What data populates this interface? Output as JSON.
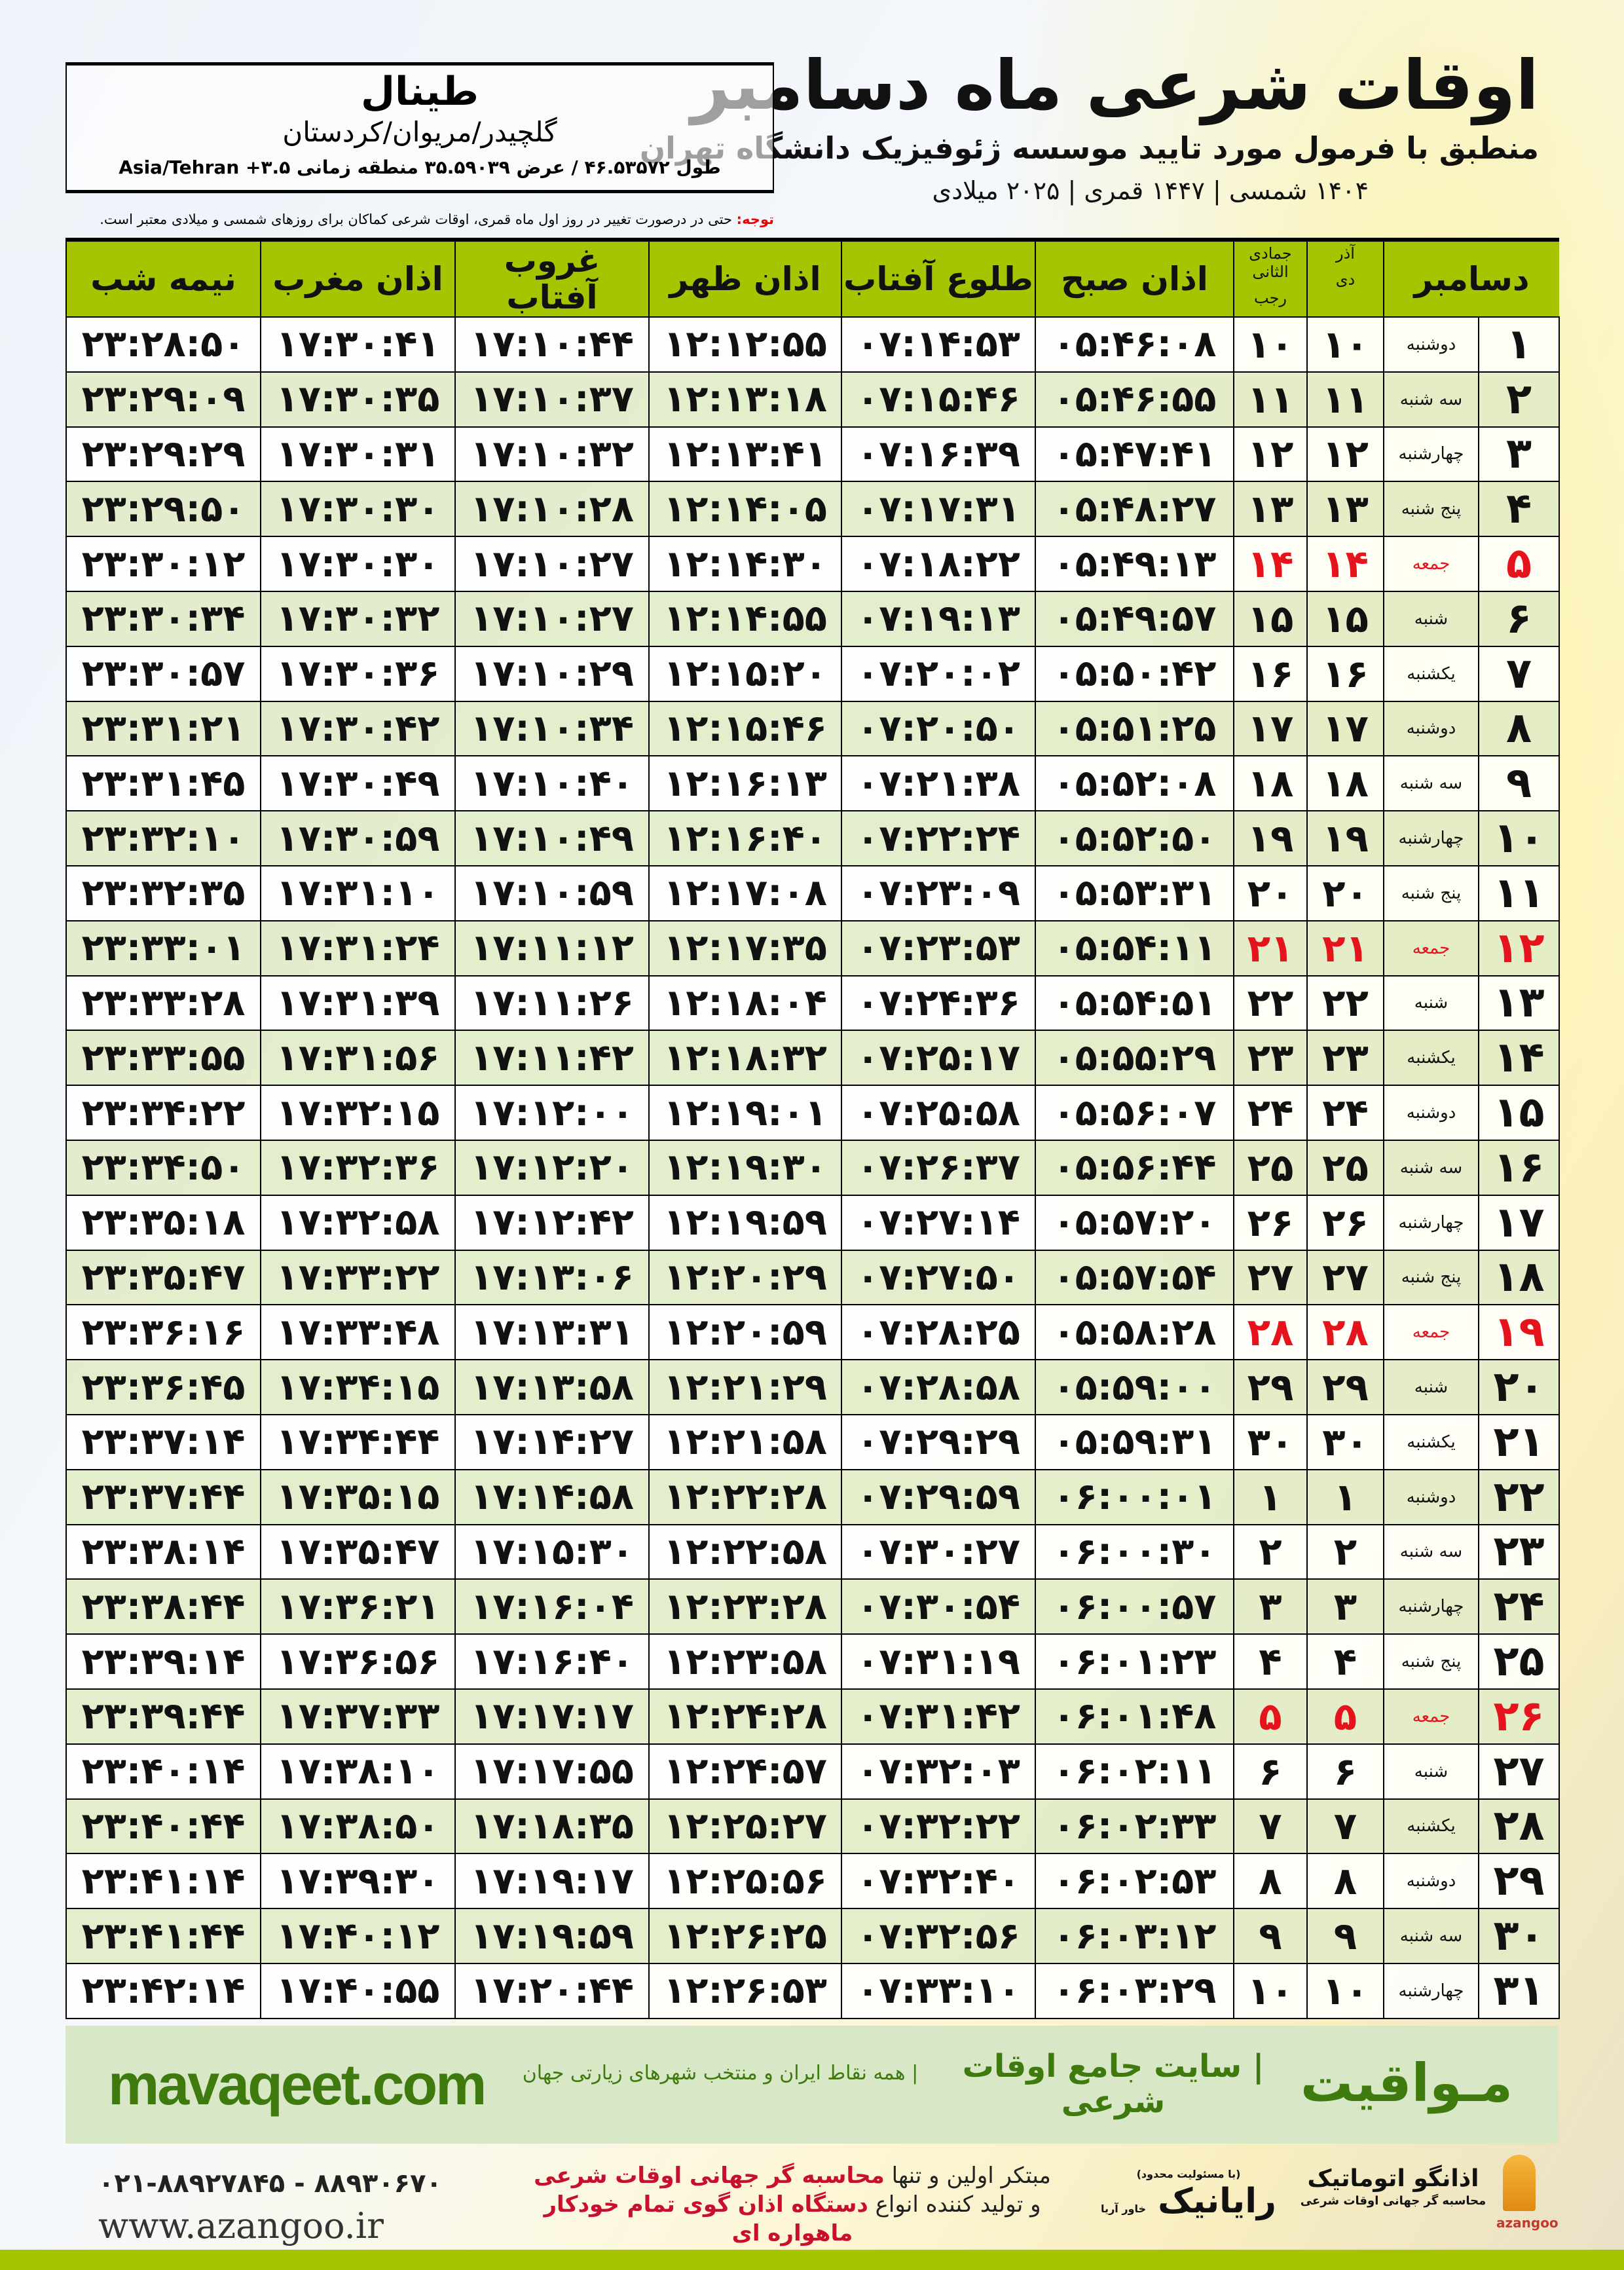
{
  "header": {
    "title": "اوقات شرعی ماه دسامبر",
    "subtitle": "منطبق با فرمول مورد تایید موسسه ژئوفیزیک دانشگاه تهران",
    "year_line": "۱۴۰۴ شمسی | ۱۴۴۷ قمری | ۲۰۲۵ میلادی"
  },
  "location": {
    "city": "طینال",
    "region": "گلچیدر/مریوان/کردستان",
    "coords": "طول ۴۶.۵۳۵۷۲ / عرض ۳۵.۵۹۰۳۹ منطقه زمانی ۳.۵+ Asia/Tehran"
  },
  "note": {
    "label": "توجه:",
    "text": " حتی در درصورت تغییر در روز اول ماه قمری، اوقات شرعی کماکان برای روزهای شمسی و میلادی معتبر است."
  },
  "columns": {
    "month": "دسامبر",
    "solar_top": "آذر",
    "solar_bottom": "دی",
    "lunar_top": "جمادی الثانی",
    "lunar_bottom": "رجب",
    "fajr": "اذان صبح",
    "sunrise": "طلوع آفتاب",
    "dhuhr": "اذان ظهر",
    "sunset": "غروب آفتاب",
    "maghrib": "اذان مغرب",
    "midnight": "نیمه شب"
  },
  "colors": {
    "header_green": "#a6c400",
    "friday_red": "#e5131b",
    "brand_green": "#3f7a0f"
  },
  "rows": [
    [
      "۱",
      "دوشنبه",
      "۱۰",
      "۱۰",
      "۰۵:۴۶:۰۸",
      "۰۷:۱۴:۵۳",
      "۱۲:۱۲:۵۵",
      "۱۷:۱۰:۴۴",
      "۱۷:۳۰:۴۱",
      "۲۳:۲۸:۵۰"
    ],
    [
      "۲",
      "سه شنبه",
      "۱۱",
      "۱۱",
      "۰۵:۴۶:۵۵",
      "۰۷:۱۵:۴۶",
      "۱۲:۱۳:۱۸",
      "۱۷:۱۰:۳۷",
      "۱۷:۳۰:۳۵",
      "۲۳:۲۹:۰۹"
    ],
    [
      "۳",
      "چهارشنبه",
      "۱۲",
      "۱۲",
      "۰۵:۴۷:۴۱",
      "۰۷:۱۶:۳۹",
      "۱۲:۱۳:۴۱",
      "۱۷:۱۰:۳۲",
      "۱۷:۳۰:۳۱",
      "۲۳:۲۹:۲۹"
    ],
    [
      "۴",
      "پنج شنبه",
      "۱۳",
      "۱۳",
      "۰۵:۴۸:۲۷",
      "۰۷:۱۷:۳۱",
      "۱۲:۱۴:۰۵",
      "۱۷:۱۰:۲۸",
      "۱۷:۳۰:۳۰",
      "۲۳:۲۹:۵۰"
    ],
    [
      "۵",
      "جمعه",
      "۱۴",
      "۱۴",
      "۰۵:۴۹:۱۳",
      "۰۷:۱۸:۲۲",
      "۱۲:۱۴:۳۰",
      "۱۷:۱۰:۲۷",
      "۱۷:۳۰:۳۰",
      "۲۳:۳۰:۱۲"
    ],
    [
      "۶",
      "شنبه",
      "۱۵",
      "۱۵",
      "۰۵:۴۹:۵۷",
      "۰۷:۱۹:۱۳",
      "۱۲:۱۴:۵۵",
      "۱۷:۱۰:۲۷",
      "۱۷:۳۰:۳۲",
      "۲۳:۳۰:۳۴"
    ],
    [
      "۷",
      "یکشنبه",
      "۱۶",
      "۱۶",
      "۰۵:۵۰:۴۲",
      "۰۷:۲۰:۰۲",
      "۱۲:۱۵:۲۰",
      "۱۷:۱۰:۲۹",
      "۱۷:۳۰:۳۶",
      "۲۳:۳۰:۵۷"
    ],
    [
      "۸",
      "دوشنبه",
      "۱۷",
      "۱۷",
      "۰۵:۵۱:۲۵",
      "۰۷:۲۰:۵۰",
      "۱۲:۱۵:۴۶",
      "۱۷:۱۰:۳۴",
      "۱۷:۳۰:۴۲",
      "۲۳:۳۱:۲۱"
    ],
    [
      "۹",
      "سه شنبه",
      "۱۸",
      "۱۸",
      "۰۵:۵۲:۰۸",
      "۰۷:۲۱:۳۸",
      "۱۲:۱۶:۱۳",
      "۱۷:۱۰:۴۰",
      "۱۷:۳۰:۴۹",
      "۲۳:۳۱:۴۵"
    ],
    [
      "۱۰",
      "چهارشنبه",
      "۱۹",
      "۱۹",
      "۰۵:۵۲:۵۰",
      "۰۷:۲۲:۲۴",
      "۱۲:۱۶:۴۰",
      "۱۷:۱۰:۴۹",
      "۱۷:۳۰:۵۹",
      "۲۳:۳۲:۱۰"
    ],
    [
      "۱۱",
      "پنج شنبه",
      "۲۰",
      "۲۰",
      "۰۵:۵۳:۳۱",
      "۰۷:۲۳:۰۹",
      "۱۲:۱۷:۰۸",
      "۱۷:۱۰:۵۹",
      "۱۷:۳۱:۱۰",
      "۲۳:۳۲:۳۵"
    ],
    [
      "۱۲",
      "جمعه",
      "۲۱",
      "۲۱",
      "۰۵:۵۴:۱۱",
      "۰۷:۲۳:۵۳",
      "۱۲:۱۷:۳۵",
      "۱۷:۱۱:۱۲",
      "۱۷:۳۱:۲۴",
      "۲۳:۳۳:۰۱"
    ],
    [
      "۱۳",
      "شنبه",
      "۲۲",
      "۲۲",
      "۰۵:۵۴:۵۱",
      "۰۷:۲۴:۳۶",
      "۱۲:۱۸:۰۴",
      "۱۷:۱۱:۲۶",
      "۱۷:۳۱:۳۹",
      "۲۳:۳۳:۲۸"
    ],
    [
      "۱۴",
      "یکشنبه",
      "۲۳",
      "۲۳",
      "۰۵:۵۵:۲۹",
      "۰۷:۲۵:۱۷",
      "۱۲:۱۸:۳۲",
      "۱۷:۱۱:۴۲",
      "۱۷:۳۱:۵۶",
      "۲۳:۳۳:۵۵"
    ],
    [
      "۱۵",
      "دوشنبه",
      "۲۴",
      "۲۴",
      "۰۵:۵۶:۰۷",
      "۰۷:۲۵:۵۸",
      "۱۲:۱۹:۰۱",
      "۱۷:۱۲:۰۰",
      "۱۷:۳۲:۱۵",
      "۲۳:۳۴:۲۲"
    ],
    [
      "۱۶",
      "سه شنبه",
      "۲۵",
      "۲۵",
      "۰۵:۵۶:۴۴",
      "۰۷:۲۶:۳۷",
      "۱۲:۱۹:۳۰",
      "۱۷:۱۲:۲۰",
      "۱۷:۳۲:۳۶",
      "۲۳:۳۴:۵۰"
    ],
    [
      "۱۷",
      "چهارشنبه",
      "۲۶",
      "۲۶",
      "۰۵:۵۷:۲۰",
      "۰۷:۲۷:۱۴",
      "۱۲:۱۹:۵۹",
      "۱۷:۱۲:۴۲",
      "۱۷:۳۲:۵۸",
      "۲۳:۳۵:۱۸"
    ],
    [
      "۱۸",
      "پنج شنبه",
      "۲۷",
      "۲۷",
      "۰۵:۵۷:۵۴",
      "۰۷:۲۷:۵۰",
      "۱۲:۲۰:۲۹",
      "۱۷:۱۳:۰۶",
      "۱۷:۳۳:۲۲",
      "۲۳:۳۵:۴۷"
    ],
    [
      "۱۹",
      "جمعه",
      "۲۸",
      "۲۸",
      "۰۵:۵۸:۲۸",
      "۰۷:۲۸:۲۵",
      "۱۲:۲۰:۵۹",
      "۱۷:۱۳:۳۱",
      "۱۷:۳۳:۴۸",
      "۲۳:۳۶:۱۶"
    ],
    [
      "۲۰",
      "شنبه",
      "۲۹",
      "۲۹",
      "۰۵:۵۹:۰۰",
      "۰۷:۲۸:۵۸",
      "۱۲:۲۱:۲۹",
      "۱۷:۱۳:۵۸",
      "۱۷:۳۴:۱۵",
      "۲۳:۳۶:۴۵"
    ],
    [
      "۲۱",
      "یکشنبه",
      "۳۰",
      "۳۰",
      "۰۵:۵۹:۳۱",
      "۰۷:۲۹:۲۹",
      "۱۲:۲۱:۵۸",
      "۱۷:۱۴:۲۷",
      "۱۷:۳۴:۴۴",
      "۲۳:۳۷:۱۴"
    ],
    [
      "۲۲",
      "دوشنبه",
      "۱",
      "۱",
      "۰۶:۰۰:۰۱",
      "۰۷:۲۹:۵۹",
      "۱۲:۲۲:۲۸",
      "۱۷:۱۴:۵۸",
      "۱۷:۳۵:۱۵",
      "۲۳:۳۷:۴۴"
    ],
    [
      "۲۳",
      "سه شنبه",
      "۲",
      "۲",
      "۰۶:۰۰:۳۰",
      "۰۷:۳۰:۲۷",
      "۱۲:۲۲:۵۸",
      "۱۷:۱۵:۳۰",
      "۱۷:۳۵:۴۷",
      "۲۳:۳۸:۱۴"
    ],
    [
      "۲۴",
      "چهارشنبه",
      "۳",
      "۳",
      "۰۶:۰۰:۵۷",
      "۰۷:۳۰:۵۴",
      "۱۲:۲۳:۲۸",
      "۱۷:۱۶:۰۴",
      "۱۷:۳۶:۲۱",
      "۲۳:۳۸:۴۴"
    ],
    [
      "۲۵",
      "پنج شنبه",
      "۴",
      "۴",
      "۰۶:۰۱:۲۳",
      "۰۷:۳۱:۱۹",
      "۱۲:۲۳:۵۸",
      "۱۷:۱۶:۴۰",
      "۱۷:۳۶:۵۶",
      "۲۳:۳۹:۱۴"
    ],
    [
      "۲۶",
      "جمعه",
      "۵",
      "۵",
      "۰۶:۰۱:۴۸",
      "۰۷:۳۱:۴۲",
      "۱۲:۲۴:۲۸",
      "۱۷:۱۷:۱۷",
      "۱۷:۳۷:۳۳",
      "۲۳:۳۹:۴۴"
    ],
    [
      "۲۷",
      "شنبه",
      "۶",
      "۶",
      "۰۶:۰۲:۱۱",
      "۰۷:۳۲:۰۳",
      "۱۲:۲۴:۵۷",
      "۱۷:۱۷:۵۵",
      "۱۷:۳۸:۱۰",
      "۲۳:۴۰:۱۴"
    ],
    [
      "۲۸",
      "یکشنبه",
      "۷",
      "۷",
      "۰۶:۰۲:۳۳",
      "۰۷:۳۲:۲۲",
      "۱۲:۲۵:۲۷",
      "۱۷:۱۸:۳۵",
      "۱۷:۳۸:۵۰",
      "۲۳:۴۰:۴۴"
    ],
    [
      "۲۹",
      "دوشنبه",
      "۸",
      "۸",
      "۰۶:۰۲:۵۳",
      "۰۷:۳۲:۴۰",
      "۱۲:۲۵:۵۶",
      "۱۷:۱۹:۱۷",
      "۱۷:۳۹:۳۰",
      "۲۳:۴۱:۱۴"
    ],
    [
      "۳۰",
      "سه شنبه",
      "۹",
      "۹",
      "۰۶:۰۳:۱۲",
      "۰۷:۳۲:۵۶",
      "۱۲:۲۶:۲۵",
      "۱۷:۱۹:۵۹",
      "۱۷:۴۰:۱۲",
      "۲۳:۴۱:۴۴"
    ],
    [
      "۳۱",
      "چهارشنبه",
      "۱۰",
      "۱۰",
      "۰۶:۰۳:۲۹",
      "۰۷:۳۳:۱۰",
      "۱۲:۲۶:۵۳",
      "۱۷:۲۰:۴۴",
      "۱۷:۴۰:۵۵",
      "۲۳:۴۲:۱۴"
    ]
  ],
  "band": {
    "logo": "مـواقیت",
    "slogan": "| سایت جامع اوقات شرعی",
    "sub": "| همه نقاط ایران و منتخب شهرهای زیارتی جهان",
    "site": "mavaqeet.com"
  },
  "footer": {
    "phones": "۰۲۱-۸۸۹۲۷۸۴۵ - ۸۸۹۳۰۶۷۰",
    "website": "www.azangoo.ir",
    "promo1_a": "مبتکر اولین و تنها ",
    "promo1_b": "محاسبه گر جهانی اوقات شرعی",
    "promo2_a": "و تولید کننده انواع ",
    "promo2_b": "دستگاه اذان گوی تمام خودکار ماهواره ای",
    "rayanik_tag": "(با مسئولیت محدود)",
    "rayanik": "رایانیک",
    "rayanik_sub": "خاور آریا",
    "azangoo": "اذانگو اتوماتیک",
    "azangoo_tag": "محاسبه گر جهانی اوقات شرعی",
    "azangoo_en": "azangoo"
  }
}
